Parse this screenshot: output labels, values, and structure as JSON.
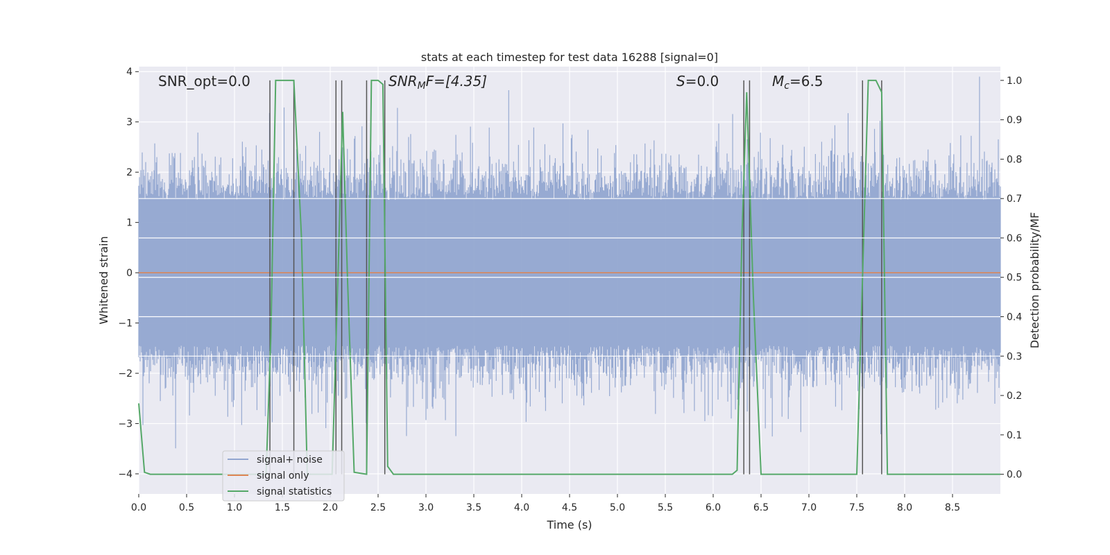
{
  "chart_data": {
    "type": "line",
    "title": "stats at each timestep for test data 16288 [signal=0]",
    "xlabel": "Time (s)",
    "ylabel": "Whitened strain",
    "ylabel_right": "Detection probability/MF",
    "xlim": [
      0.0,
      9.0
    ],
    "ylim": [
      -4.4,
      4.1
    ],
    "ylim_right": [
      -0.05,
      1.035
    ],
    "xticks": [
      "0.0",
      "0.5",
      "1.0",
      "1.5",
      "2.0",
      "2.5",
      "3.0",
      "3.5",
      "4.0",
      "4.5",
      "5.0",
      "5.5",
      "6.0",
      "6.5",
      "7.0",
      "7.5",
      "8.0",
      "8.5"
    ],
    "yticks": [
      "4",
      "3",
      "2",
      "1",
      "0",
      "−1",
      "−2",
      "−3",
      "−4"
    ],
    "yticks_right": [
      "1.0",
      "0.9",
      "0.8",
      "0.7",
      "0.6",
      "0.5",
      "0.4",
      "0.3",
      "0.2",
      "0.1",
      "0.0"
    ],
    "grid": true,
    "legend_position": "lower-left",
    "annotations": {
      "snr_opt": "SNR_opt=0.0",
      "snr_mf_main": "SNR",
      "snr_mf_sub": "M",
      "snr_mf_rest": "F=[4.35]",
      "s_main": "S",
      "s_rest": "=0.0",
      "mc_main": "M",
      "mc_sub": "c",
      "mc_rest": "=6.5"
    },
    "series": [
      {
        "name": "signal+ noise",
        "color": "#92a6d0",
        "description_type": "noise",
        "noise_std": 1.0
      },
      {
        "name": "signal only",
        "color": "#dd8452",
        "values_constant": 0.0
      },
      {
        "name": "signal statistics",
        "color": "#55a868",
        "x": [
          0.0,
          0.06,
          0.12,
          1.33,
          1.38,
          1.43,
          1.62,
          1.7,
          1.76,
          2.02,
          2.08,
          2.13,
          2.18,
          2.25,
          2.38,
          2.43,
          2.5,
          2.55,
          2.6,
          2.66,
          6.2,
          6.25,
          6.3,
          6.35,
          6.42,
          6.5,
          7.5,
          7.56,
          7.62,
          7.7,
          7.76,
          7.82,
          9.0
        ],
        "y": [
          0.18,
          0.005,
          0.0,
          0.0,
          0.35,
          1.0,
          1.0,
          0.6,
          0.0,
          0.0,
          0.5,
          0.92,
          0.5,
          0.005,
          0.0,
          1.0,
          1.0,
          0.99,
          0.02,
          0.0,
          0.0,
          0.01,
          0.6,
          0.97,
          0.45,
          0.0,
          0.0,
          0.5,
          1.0,
          1.0,
          0.97,
          0.0,
          0.0
        ]
      }
    ],
    "vertical_lines_x": [
      1.37,
      1.62,
      2.06,
      2.12,
      2.38,
      2.57,
      6.32,
      6.38,
      7.56,
      7.76
    ]
  }
}
